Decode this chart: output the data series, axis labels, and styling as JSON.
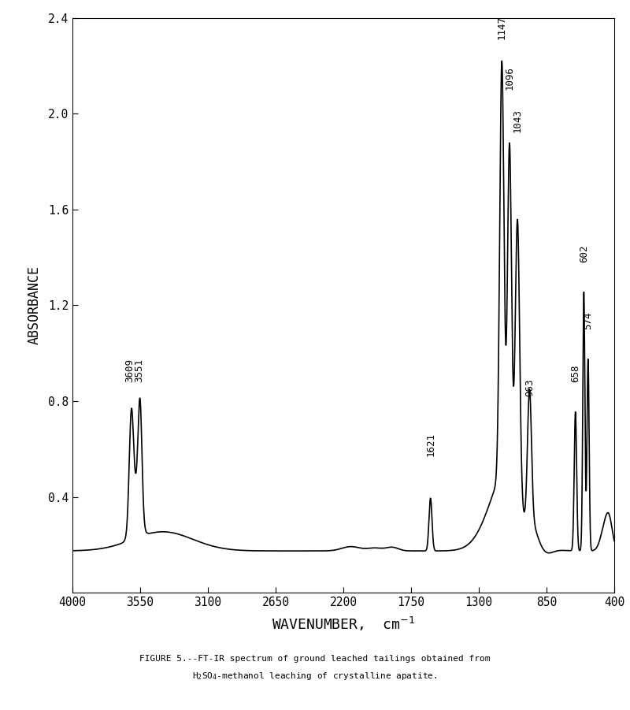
{
  "xlabel": "WAVENUMBER,  cm$^{-1}$",
  "ylabel": "ABSORBANCE",
  "xlim": [
    4000,
    400
  ],
  "ylim": [
    0.0,
    2.4
  ],
  "yticks": [
    0.4,
    0.8,
    1.2,
    1.6,
    2.0,
    2.4
  ],
  "ytick_labels": [
    "0.4",
    "0.8",
    "1.2",
    "1.6",
    "2.0",
    "2.4"
  ],
  "xticks": [
    4000,
    3550,
    3100,
    2650,
    2200,
    1750,
    1300,
    850,
    400
  ],
  "caption_line1": "FIGURE 5.--FT-IR spectrum of ground leached tailings obtained from",
  "caption_line2": "H$_2$SO$_4$-methanol leaching of crystalline apatite.",
  "background_color": "#ffffff",
  "line_color": "#000000",
  "line_width": 1.2,
  "peak_labels": [
    [
      3620,
      0.88,
      "3609"
    ],
    [
      3555,
      0.88,
      "3551"
    ],
    [
      1621,
      0.57,
      "1621"
    ],
    [
      1147,
      2.31,
      "1147"
    ],
    [
      1096,
      2.1,
      "1096"
    ],
    [
      1043,
      1.92,
      "1043"
    ],
    [
      963,
      0.82,
      "963"
    ],
    [
      658,
      0.88,
      "658"
    ],
    [
      602,
      1.38,
      "602"
    ],
    [
      574,
      1.1,
      "574"
    ]
  ]
}
